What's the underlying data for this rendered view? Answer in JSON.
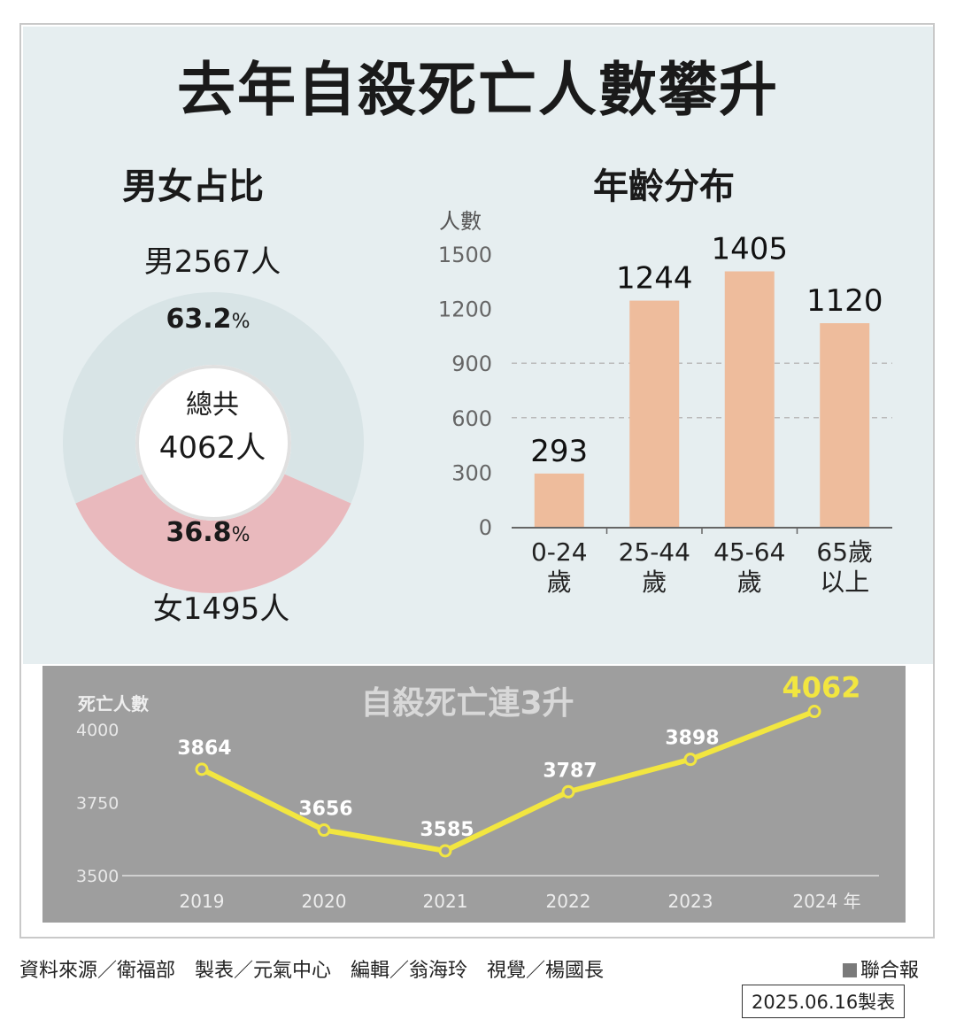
{
  "title": "去年自殺死亡人數攀升",
  "gender": {
    "section_title": "男女占比",
    "male_label": "男2567人",
    "female_label": "女1495人",
    "male_pct": "63.2",
    "female_pct": "36.8",
    "pct_sign": "%",
    "total_label": "總共",
    "total_value": "4062人"
  },
  "age": {
    "section_title": "年齡分布",
    "ylabel": "人數"
  },
  "trend": {
    "title": "自殺死亡連3升",
    "ylabel": "死亡人數",
    "x_suffix": "年"
  },
  "footer": {
    "source": "資料來源／衛福部　製表／元氣中心　編輯／翁海玲　視覺／楊國長",
    "brand": "聯合報",
    "date": "2025.06.16製表"
  },
  "colors": {
    "male": "#d8e4e6",
    "female": "#e9b9bd",
    "bar": "#eebc9c",
    "line": "#f2e640",
    "line_bg": "#9e9e9e"
  },
  "chart_data": [
    {
      "type": "pie",
      "categories": [
        "男",
        "女"
      ],
      "values": [
        2567,
        1495
      ],
      "percentages": [
        63.2,
        36.8
      ],
      "total": 4062
    },
    {
      "type": "bar",
      "categories": [
        "0-24歲",
        "25-44歲",
        "45-64歲",
        "65歲以上"
      ],
      "category_lines": [
        [
          "0-24",
          "歲"
        ],
        [
          "25-44",
          "歲"
        ],
        [
          "45-64",
          "歲"
        ],
        [
          "65歲",
          "以上"
        ]
      ],
      "values": [
        293,
        1244,
        1405,
        1120
      ],
      "ylabel": "人數",
      "yticks": [
        0,
        300,
        600,
        900,
        1200,
        1500
      ],
      "ylim": [
        0,
        1500
      ],
      "grid": "dashed at 600 and 900"
    },
    {
      "type": "line",
      "title": "自殺死亡連3升",
      "x": [
        "2019",
        "2020",
        "2021",
        "2022",
        "2023",
        "2024"
      ],
      "values": [
        3864,
        3656,
        3585,
        3787,
        3898,
        4062
      ],
      "ylabel": "死亡人數",
      "yticks": [
        3500,
        3750,
        4000
      ],
      "ylim": [
        3500,
        4100
      ]
    }
  ]
}
